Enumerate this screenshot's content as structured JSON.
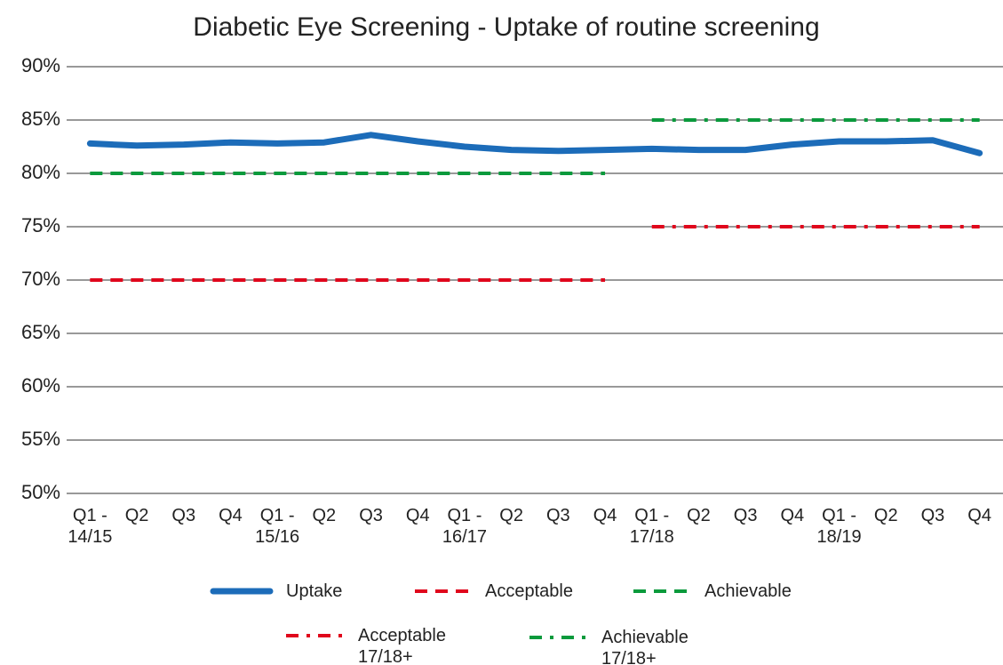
{
  "chart_data": {
    "type": "line",
    "title": "Diabetic Eye Screening - Uptake of routine screening",
    "categories": [
      "Q1 - 14/15",
      "Q2",
      "Q3",
      "Q4",
      "Q1 - 15/16",
      "Q2",
      "Q3",
      "Q4",
      "Q1 - 16/17",
      "Q2",
      "Q3",
      "Q4",
      "Q1 - 17/18",
      "Q2",
      "Q3",
      "Q4",
      "Q1 - 18/19",
      "Q2",
      "Q3",
      "Q4"
    ],
    "series": [
      {
        "name": "Uptake",
        "color": "#1c6cb9",
        "style": "solid",
        "values": [
          82.8,
          82.6,
          82.7,
          82.9,
          82.8,
          82.9,
          83.6,
          83.0,
          82.5,
          82.2,
          82.1,
          82.2,
          82.3,
          82.2,
          82.2,
          82.7,
          83.0,
          83.0,
          83.1,
          81.9
        ]
      },
      {
        "name": "Acceptable",
        "color": "#e0061c",
        "style": "dashed",
        "values": [
          70,
          70,
          70,
          70,
          70,
          70,
          70,
          70,
          70,
          70,
          70,
          70,
          null,
          null,
          null,
          null,
          null,
          null,
          null,
          null
        ]
      },
      {
        "name": "Achievable",
        "color": "#0a9a3c",
        "style": "dashed",
        "values": [
          80,
          80,
          80,
          80,
          80,
          80,
          80,
          80,
          80,
          80,
          80,
          80,
          null,
          null,
          null,
          null,
          null,
          null,
          null,
          null
        ]
      },
      {
        "name": "Acceptable 17/18+",
        "color": "#e0061c",
        "style": "dashdot",
        "values": [
          null,
          null,
          null,
          null,
          null,
          null,
          null,
          null,
          null,
          null,
          null,
          null,
          75,
          75,
          75,
          75,
          75,
          75,
          75,
          75
        ]
      },
      {
        "name": "Achievable 17/18+",
        "color": "#0a9a3c",
        "style": "dashdot",
        "values": [
          null,
          null,
          null,
          null,
          null,
          null,
          null,
          null,
          null,
          null,
          null,
          null,
          85,
          85,
          85,
          85,
          85,
          85,
          85,
          85
        ]
      }
    ],
    "ylim": [
      50,
      90
    ],
    "yticks": [
      {
        "value": 50,
        "label": "50%"
      },
      {
        "value": 55,
        "label": "55%"
      },
      {
        "value": 60,
        "label": "60%"
      },
      {
        "value": 65,
        "label": "65%"
      },
      {
        "value": 70,
        "label": "70%"
      },
      {
        "value": 75,
        "label": "75%"
      },
      {
        "value": 80,
        "label": "80%"
      },
      {
        "value": 85,
        "label": "85%"
      },
      {
        "value": 90,
        "label": "90%"
      }
    ],
    "grid": true,
    "legend": "bottom"
  }
}
